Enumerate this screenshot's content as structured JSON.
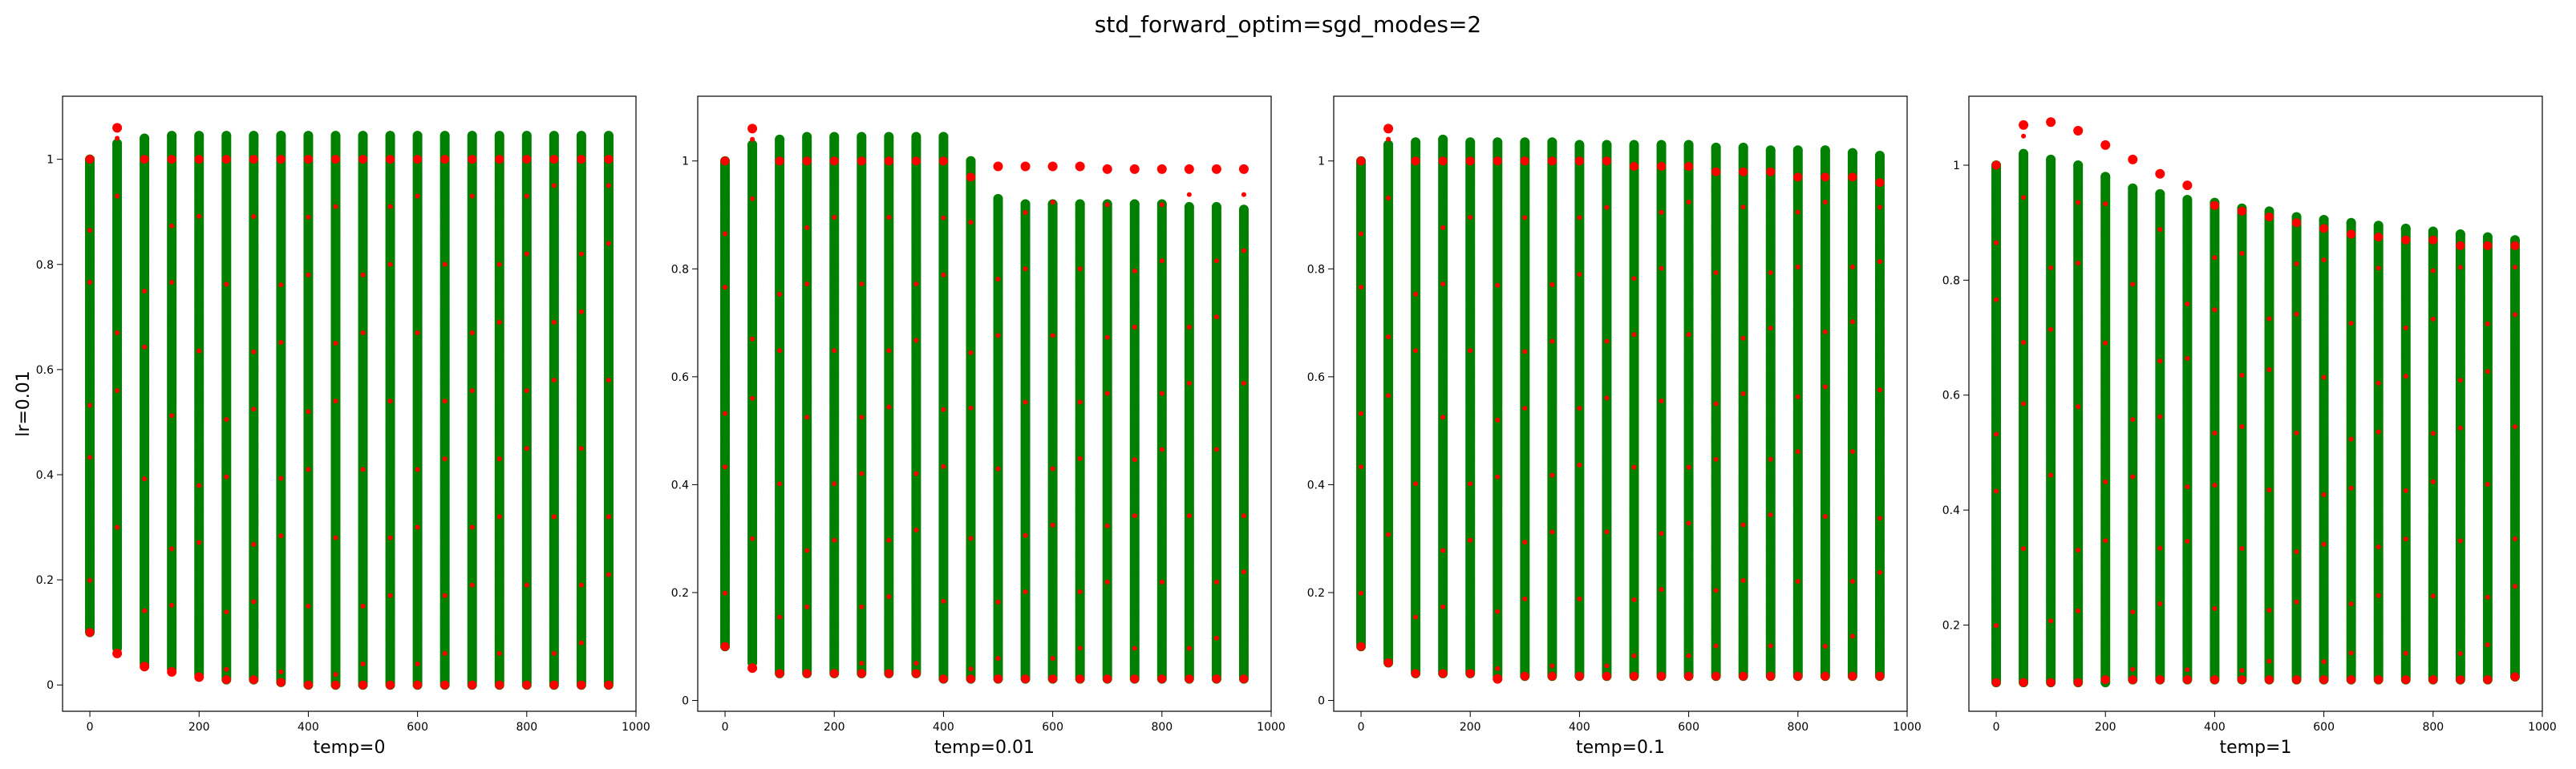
{
  "figure": {
    "suptitle": "std_forward_optim=sgd_modes=2",
    "row_label": "lr=0.01"
  },
  "colors": {
    "green": "#008000",
    "red": "#ff0000"
  },
  "chart_data": [
    {
      "type": "scatter",
      "xlabel": "temp=0",
      "xlim": [
        -50,
        1000
      ],
      "ylim": [
        -0.05,
        1.12
      ],
      "xticks": [
        0,
        200,
        400,
        600,
        800,
        1000
      ],
      "yticks": [
        0.0,
        0.2,
        0.4,
        0.6,
        0.8,
        1.0
      ],
      "x": [
        0,
        50,
        100,
        150,
        200,
        250,
        300,
        350,
        400,
        450,
        500,
        550,
        600,
        650,
        700,
        750,
        800,
        850,
        900,
        950
      ],
      "series": [
        {
          "color": "green",
          "min": [
            0.1,
            0.07,
            0.04,
            0.03,
            0.02,
            0.01,
            0.01,
            0.005,
            0.0,
            0.0,
            0.0,
            0.0,
            0.0,
            0.0,
            0.0,
            0.0,
            0.0,
            0.0,
            0.0,
            0.0
          ],
          "max": [
            1.0,
            1.03,
            1.04,
            1.045,
            1.045,
            1.045,
            1.045,
            1.045,
            1.045,
            1.045,
            1.045,
            1.045,
            1.045,
            1.045,
            1.045,
            1.045,
            1.045,
            1.045,
            1.045,
            1.045
          ]
        },
        {
          "color": "red",
          "min": [
            0.1,
            0.06,
            0.035,
            0.025,
            0.015,
            0.01,
            0.01,
            0.005,
            0.0,
            0.0,
            0.0,
            0.0,
            0.0,
            0.0,
            0.0,
            0.0,
            0.0,
            0.0,
            0.0,
            0.0
          ],
          "max": [
            1.0,
            1.06,
            1.0,
            1.0,
            1.0,
            1.0,
            1.0,
            1.0,
            1.0,
            1.0,
            1.0,
            1.0,
            1.0,
            1.0,
            1.0,
            1.0,
            1.0,
            1.0,
            1.0,
            1.0
          ]
        }
      ]
    },
    {
      "type": "scatter",
      "xlabel": "temp=0.01",
      "xlim": [
        -50,
        1000
      ],
      "ylim": [
        -0.02,
        1.12
      ],
      "xticks": [
        0,
        200,
        400,
        600,
        800,
        1000
      ],
      "yticks": [
        0.0,
        0.2,
        0.4,
        0.6,
        0.8,
        1.0
      ],
      "x": [
        0,
        50,
        100,
        150,
        200,
        250,
        300,
        350,
        400,
        450,
        500,
        550,
        600,
        650,
        700,
        750,
        800,
        850,
        900,
        950
      ],
      "series": [
        {
          "color": "green",
          "min": [
            0.1,
            0.07,
            0.05,
            0.05,
            0.05,
            0.05,
            0.05,
            0.05,
            0.04,
            0.04,
            0.04,
            0.04,
            0.04,
            0.04,
            0.04,
            0.04,
            0.04,
            0.04,
            0.04,
            0.04
          ],
          "max": [
            1.0,
            1.03,
            1.04,
            1.045,
            1.045,
            1.045,
            1.045,
            1.045,
            1.045,
            1.0,
            0.93,
            0.92,
            0.92,
            0.92,
            0.92,
            0.92,
            0.92,
            0.915,
            0.915,
            0.91
          ]
        },
        {
          "color": "red",
          "min": [
            0.1,
            0.06,
            0.05,
            0.05,
            0.05,
            0.05,
            0.05,
            0.05,
            0.04,
            0.04,
            0.04,
            0.04,
            0.04,
            0.04,
            0.04,
            0.04,
            0.04,
            0.04,
            0.04,
            0.04
          ],
          "max": [
            1.0,
            1.06,
            1.0,
            1.0,
            1.0,
            1.0,
            1.0,
            1.0,
            1.0,
            0.97,
            0.99,
            0.99,
            0.99,
            0.99,
            0.985,
            0.985,
            0.985,
            0.985,
            0.985,
            0.985
          ]
        }
      ]
    },
    {
      "type": "scatter",
      "xlabel": "temp=0.1",
      "xlim": [
        -50,
        1000
      ],
      "ylim": [
        -0.02,
        1.12
      ],
      "xticks": [
        0,
        200,
        400,
        600,
        800,
        1000
      ],
      "yticks": [
        0.0,
        0.2,
        0.4,
        0.6,
        0.8,
        1.0
      ],
      "x": [
        0,
        50,
        100,
        150,
        200,
        250,
        300,
        350,
        400,
        450,
        500,
        550,
        600,
        650,
        700,
        750,
        800,
        850,
        900,
        950
      ],
      "series": [
        {
          "color": "green",
          "min": [
            0.1,
            0.07,
            0.05,
            0.05,
            0.05,
            0.045,
            0.045,
            0.045,
            0.045,
            0.045,
            0.045,
            0.045,
            0.045,
            0.045,
            0.045,
            0.045,
            0.045,
            0.045,
            0.045,
            0.045
          ],
          "max": [
            1.0,
            1.03,
            1.035,
            1.04,
            1.035,
            1.035,
            1.035,
            1.035,
            1.03,
            1.03,
            1.03,
            1.03,
            1.03,
            1.025,
            1.025,
            1.02,
            1.02,
            1.02,
            1.015,
            1.01
          ]
        },
        {
          "color": "red",
          "min": [
            0.1,
            0.07,
            0.05,
            0.05,
            0.05,
            0.04,
            0.045,
            0.045,
            0.045,
            0.045,
            0.045,
            0.045,
            0.045,
            0.045,
            0.045,
            0.045,
            0.045,
            0.045,
            0.045,
            0.045
          ],
          "max": [
            1.0,
            1.06,
            1.0,
            1.0,
            1.0,
            1.0,
            1.0,
            1.0,
            1.0,
            1.0,
            0.99,
            0.99,
            0.99,
            0.98,
            0.98,
            0.98,
            0.97,
            0.97,
            0.97,
            0.96
          ]
        }
      ]
    },
    {
      "type": "scatter",
      "xlabel": "temp=1",
      "xlim": [
        -50,
        1000
      ],
      "ylim": [
        0.05,
        1.12
      ],
      "xticks": [
        0,
        200,
        400,
        600,
        800,
        1000
      ],
      "yticks": [
        0.2,
        0.4,
        0.6,
        0.8,
        1.0
      ],
      "x": [
        0,
        50,
        100,
        150,
        200,
        250,
        300,
        350,
        400,
        450,
        500,
        550,
        600,
        650,
        700,
        750,
        800,
        850,
        900,
        950
      ],
      "series": [
        {
          "color": "green",
          "min": [
            0.1,
            0.1,
            0.1,
            0.1,
            0.1,
            0.105,
            0.105,
            0.105,
            0.105,
            0.105,
            0.105,
            0.105,
            0.105,
            0.105,
            0.105,
            0.105,
            0.105,
            0.105,
            0.105,
            0.11
          ],
          "max": [
            1.0,
            1.02,
            1.01,
            1.0,
            0.98,
            0.96,
            0.95,
            0.94,
            0.935,
            0.925,
            0.92,
            0.91,
            0.905,
            0.9,
            0.895,
            0.89,
            0.885,
            0.88,
            0.875,
            0.87
          ]
        },
        {
          "color": "red",
          "min": [
            0.1,
            0.1,
            0.1,
            0.1,
            0.105,
            0.105,
            0.105,
            0.105,
            0.105,
            0.105,
            0.105,
            0.105,
            0.105,
            0.105,
            0.105,
            0.105,
            0.105,
            0.105,
            0.105,
            0.11
          ],
          "max": [
            1.0,
            1.07,
            1.075,
            1.06,
            1.035,
            1.01,
            0.985,
            0.965,
            0.93,
            0.92,
            0.91,
            0.9,
            0.89,
            0.88,
            0.875,
            0.87,
            0.87,
            0.86,
            0.86,
            0.86
          ]
        }
      ]
    }
  ]
}
